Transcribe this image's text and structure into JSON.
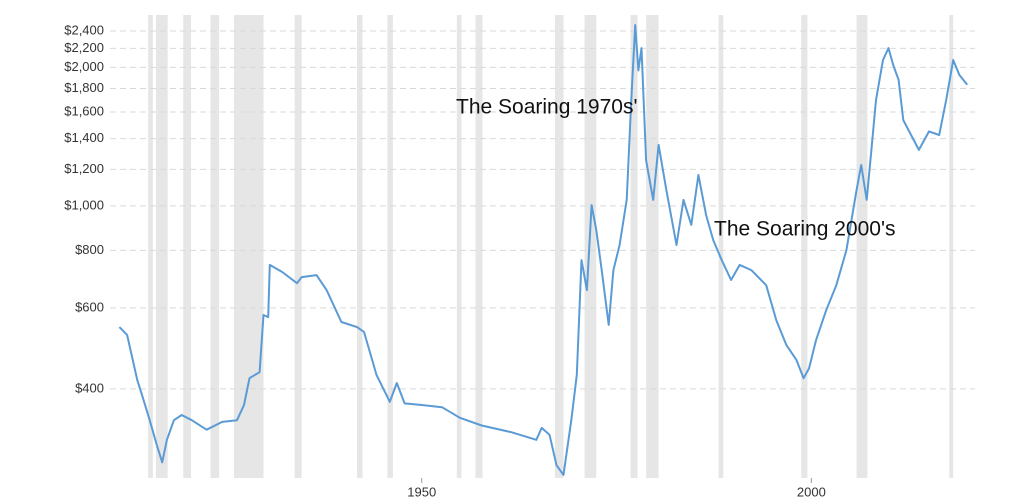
{
  "chart_data": {
    "type": "line",
    "x": [
      1911.2,
      1912.2,
      1913.5,
      1914.1,
      1915.1,
      1916.0,
      1916.7,
      1917.3,
      1918.2,
      1919.2,
      1920.5,
      1922.4,
      1924.4,
      1926.3,
      1927.2,
      1927.9,
      1929.2,
      1929.7,
      1930.3,
      1930.5,
      1932.1,
      1934.0,
      1934.6,
      1936.5,
      1937.8,
      1939.7,
      1941.7,
      1942.6,
      1944.2,
      1945.9,
      1946.8,
      1947.8,
      1950.0,
      1952.6,
      1954.9,
      1957.7,
      1961.5,
      1964.7,
      1965.4,
      1966.4,
      1967.3,
      1968.2,
      1969.2,
      1969.9,
      1970.5,
      1971.2,
      1971.8,
      1972.4,
      1973.1,
      1974.0,
      1974.6,
      1975.4,
      1976.3,
      1976.9,
      1977.4,
      1977.8,
      1978.2,
      1978.8,
      1979.7,
      1980.4,
      1981.4,
      1982.7,
      1983.6,
      1984.6,
      1985.5,
      1986.5,
      1987.4,
      1988.5,
      1989.7,
      1990.8,
      1992.3,
      1994.2,
      1995.5,
      1996.8,
      1998.1,
      1999.0,
      1999.7,
      2000.6,
      2001.9,
      2003.2,
      2004.5,
      2005.8,
      2006.4,
      2007.1,
      2007.7,
      2008.3,
      2009.2,
      2009.9,
      2010.5,
      2011.2,
      2011.8,
      2012.8,
      2013.8,
      2015.1,
      2016.4,
      2017.3,
      2018.2,
      2019.0,
      2020.0
    ],
    "values": [
      545,
      524,
      418,
      388,
      342,
      302,
      277,
      310,
      342,
      351,
      342,
      326,
      339,
      342,
      369,
      422,
      435,
      579,
      573,
      744,
      718,
      679,
      700,
      707,
      656,
      559,
      545,
      532,
      429,
      375,
      412,
      372,
      369,
      365,
      346,
      333,
      322,
      310,
      329,
      318,
      273,
      260,
      342,
      429,
      762,
      656,
      1004,
      885,
      725,
      551,
      725,
      822,
      1030,
      1700,
      2473,
      1970,
      2203,
      1256,
      1030,
      1357,
      1081,
      822,
      1030,
      909,
      1167,
      955,
      843,
      762,
      690,
      744,
      725,
      672,
      564,
      498,
      462,
      422,
      443,
      510,
      593,
      672,
      801,
      1081,
      1227,
      1030,
      1323,
      1700,
      2075,
      2203,
      2024,
      1879,
      1536,
      1426,
      1323,
      1452,
      1426,
      1700,
      2075,
      1925,
      1833
    ],
    "color": "#5b9bd5",
    "xlim": [
      1910,
      2021
    ],
    "ylim": [
      256,
      2600
    ],
    "ylog": true,
    "xticks": [
      1950,
      2000
    ],
    "yticks": [
      {
        "value": 400,
        "label": "$400"
      },
      {
        "value": 600,
        "label": "$600"
      },
      {
        "value": 800,
        "label": "$800"
      },
      {
        "value": 1000,
        "label": "$1,000"
      },
      {
        "value": 1200,
        "label": "$1,200"
      },
      {
        "value": 1400,
        "label": "$1,400"
      },
      {
        "value": 1600,
        "label": "$1,600"
      },
      {
        "value": 1800,
        "label": "$1,800"
      },
      {
        "value": 2000,
        "label": "$2,000"
      },
      {
        "value": 2200,
        "label": "$2,200"
      },
      {
        "value": 2400,
        "label": "$2,400"
      }
    ],
    "grid": true,
    "shaded_periods": [
      [
        1914.9,
        1915.5
      ],
      [
        1915.9,
        1917.4
      ],
      [
        1919.4,
        1920.4
      ],
      [
        1922.9,
        1924.0
      ],
      [
        1925.9,
        1929.7
      ],
      [
        1933.7,
        1934.6
      ],
      [
        1941.7,
        1942.4
      ],
      [
        1945.6,
        1946.3
      ],
      [
        1954.5,
        1955.1
      ],
      [
        1956.9,
        1957.8
      ],
      [
        1967.1,
        1968.2
      ],
      [
        1970.9,
        1972.4
      ],
      [
        1976.8,
        1977.7
      ],
      [
        1978.8,
        1980.4
      ],
      [
        1988.1,
        1988.7
      ],
      [
        1998.7,
        1999.5
      ],
      [
        2005.8,
        2007.2
      ],
      [
        2017.7,
        2018.2
      ]
    ],
    "shade_color": "#e6e6e6",
    "annotations": [
      "The Soaring 1970s'",
      "The Soaring 2000's"
    ]
  }
}
